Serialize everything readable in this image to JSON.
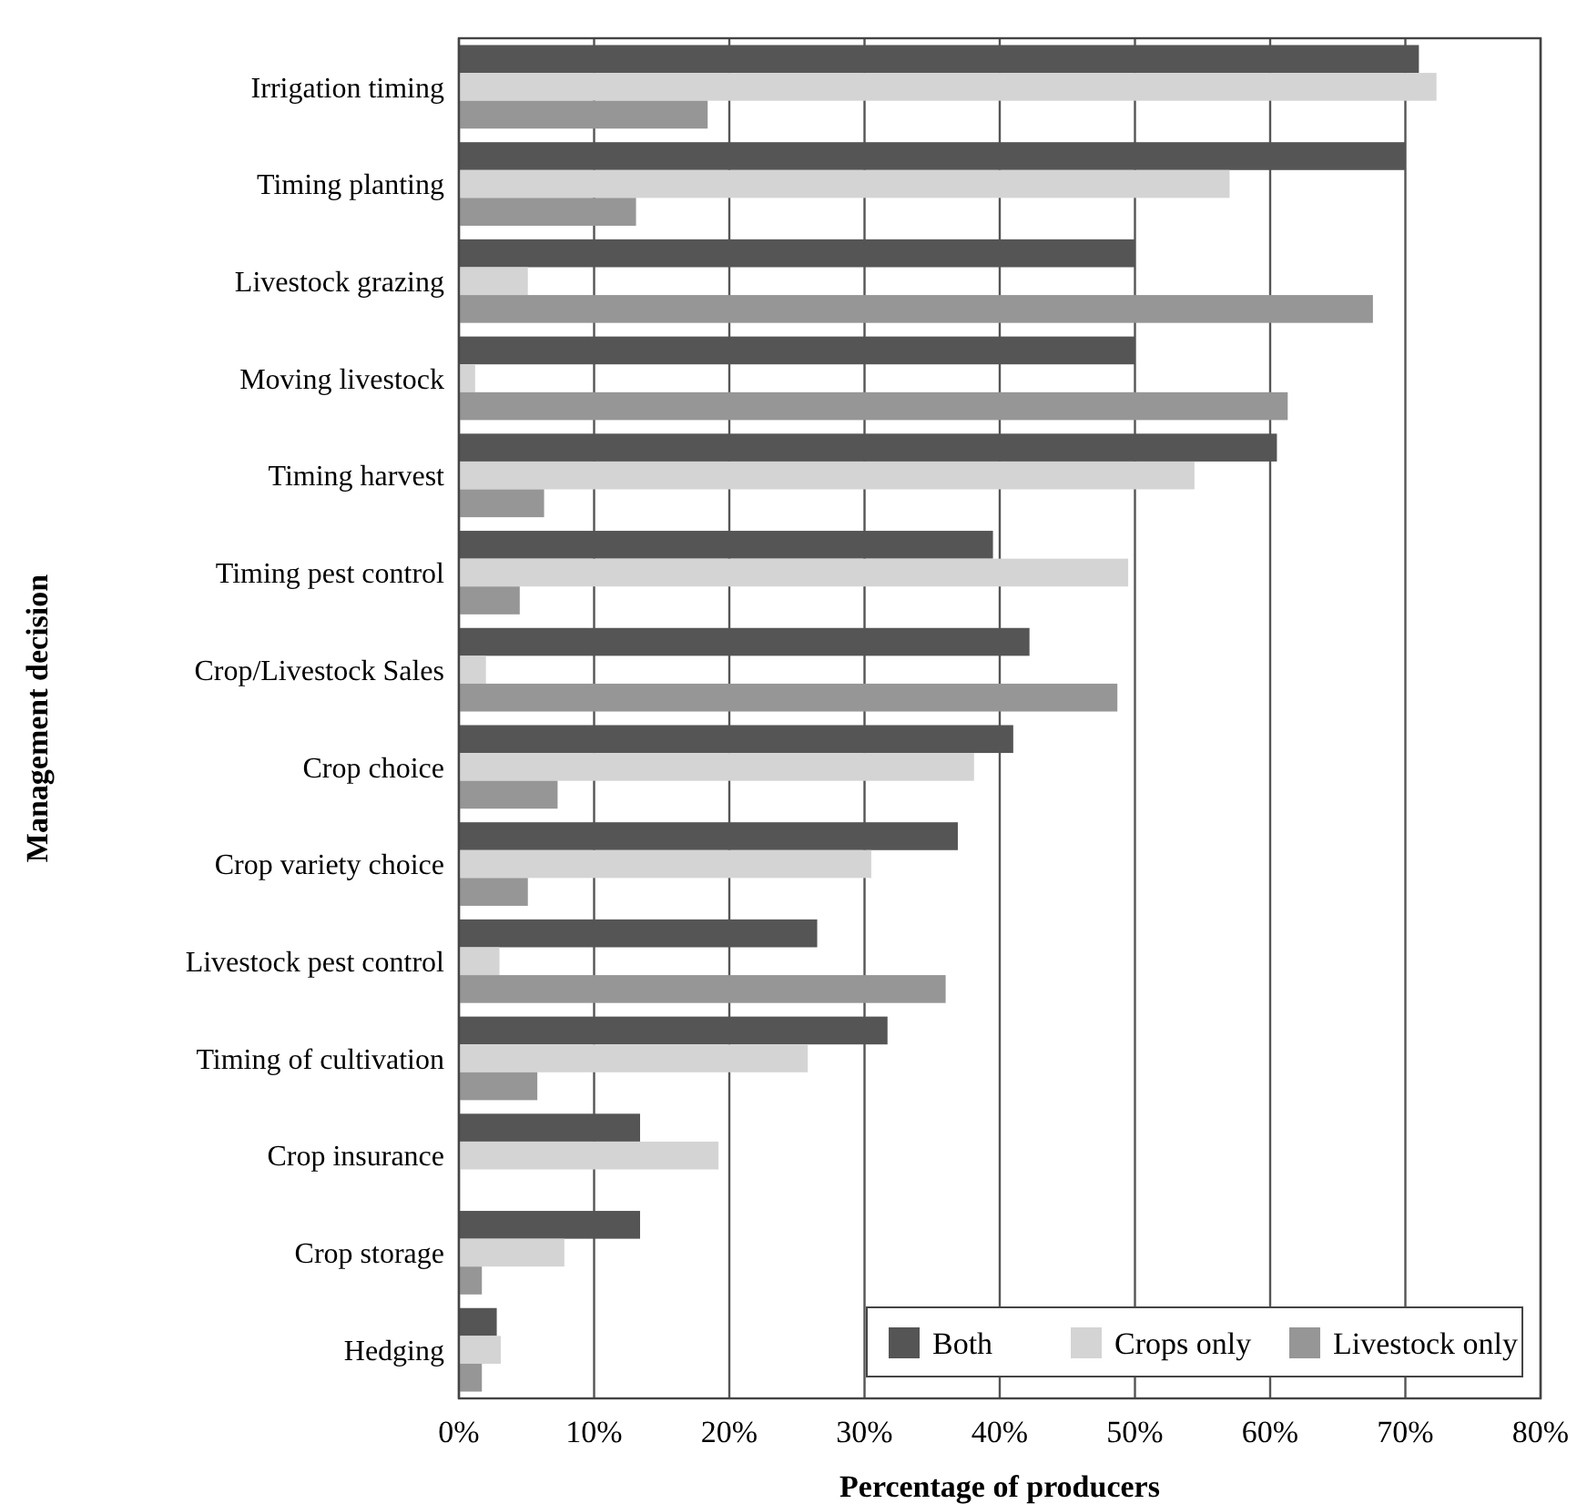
{
  "chart_data": {
    "type": "bar",
    "orientation": "horizontal",
    "xlabel": "Percentage of producers",
    "ylabel": "Management decision",
    "categories": [
      "Irrigation timing",
      "Timing planting",
      "Livestock grazing",
      "Moving livestock",
      "Timing harvest",
      "Timing pest control",
      "Crop/Livestock Sales",
      "Crop choice",
      "Crop variety choice",
      "Livestock pest control",
      "Timing of cultivation",
      "Crop insurance",
      "Crop storage",
      "Hedging"
    ],
    "series": [
      {
        "name": "Both",
        "color": "#555555",
        "values": [
          71.0,
          70.0,
          50.0,
          50.0,
          60.5,
          39.5,
          42.2,
          41.0,
          36.9,
          26.5,
          31.7,
          13.4,
          13.4,
          2.8
        ]
      },
      {
        "name": "Crops only",
        "color": "#d4d4d4",
        "values": [
          72.3,
          57.0,
          5.1,
          1.2,
          54.4,
          49.5,
          2.0,
          38.1,
          30.5,
          3.0,
          25.8,
          19.2,
          7.8,
          3.1
        ]
      },
      {
        "name": "Livestock only",
        "color": "#969696",
        "values": [
          18.4,
          13.1,
          67.6,
          61.3,
          6.3,
          4.5,
          48.7,
          7.3,
          5.1,
          36.0,
          5.8,
          0,
          1.7,
          1.7
        ]
      }
    ],
    "xlim": [
      0,
      80
    ],
    "xticks": [
      {
        "value": 0,
        "label": "0%"
      },
      {
        "value": 10,
        "label": "10%"
      },
      {
        "value": 20,
        "label": "20%"
      },
      {
        "value": 30,
        "label": "30%"
      },
      {
        "value": 40,
        "label": "40%"
      },
      {
        "value": 50,
        "label": "50%"
      },
      {
        "value": 60,
        "label": "60%"
      },
      {
        "value": 70,
        "label": "70%"
      },
      {
        "value": 80,
        "label": "80%"
      }
    ],
    "grid": "x",
    "legend": "bottom right"
  }
}
